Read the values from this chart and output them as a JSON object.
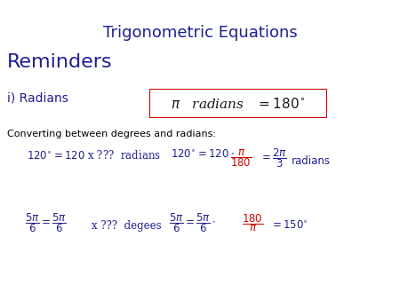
{
  "title": "Trigonometric Equations",
  "title_color": "#1f1f8f",
  "title_fontsize": 13,
  "reminders_text": "Reminders",
  "reminders_color": "#1f1f8f",
  "reminders_fontsize": 16,
  "section_i_text": "i) Radians",
  "section_i_color": "#1f1f8f",
  "section_i_fontsize": 10,
  "box_edge_color": "#cc0000",
  "converting_text": "Converting between degrees and radians:",
  "converting_fontsize": 8,
  "converting_color": "#000000",
  "blue_color": "#1f1f8f",
  "red_color": "#cc0000",
  "black_color": "#1a1a1a",
  "bg_color": "#ffffff",
  "math_fontsize": 8.5
}
